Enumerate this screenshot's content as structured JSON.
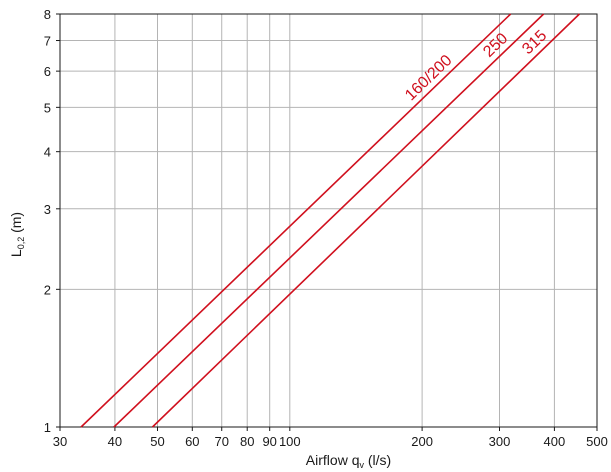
{
  "chart_data": {
    "type": "line",
    "title": "",
    "xlabel": {
      "main": "Airflow q",
      "sub": "v",
      "unit": " (l/s)"
    },
    "ylabel": {
      "main": "L",
      "sub": "0,2",
      "unit": " (m)"
    },
    "x_scale": "log",
    "y_scale": "log",
    "xlim": [
      30,
      500
    ],
    "ylim": [
      1,
      8
    ],
    "x_ticks": [
      30,
      40,
      50,
      60,
      70,
      80,
      90,
      100,
      200,
      300,
      400,
      500
    ],
    "x_tick_labels": [
      "30",
      "40",
      "50",
      "60",
      "70",
      "80",
      "90",
      "100",
      "200",
      "300",
      "400",
      "500"
    ],
    "y_ticks": [
      1,
      2,
      3,
      4,
      5,
      6,
      7,
      8
    ],
    "y_tick_labels": [
      "1",
      "2",
      "3",
      "4",
      "5",
      "6",
      "7",
      "8"
    ],
    "grid": true,
    "line_color": "#d0101e",
    "grid_color": "#b4b4b4",
    "series": [
      {
        "name": "160/200",
        "x": [
          33.5,
          318
        ],
        "y": [
          1,
          8
        ]
      },
      {
        "name": "250",
        "x": [
          39.8,
          378
        ],
        "y": [
          1,
          8
        ]
      },
      {
        "name": "315",
        "x": [
          48.7,
          456
        ],
        "y": [
          1,
          8
        ]
      }
    ]
  }
}
